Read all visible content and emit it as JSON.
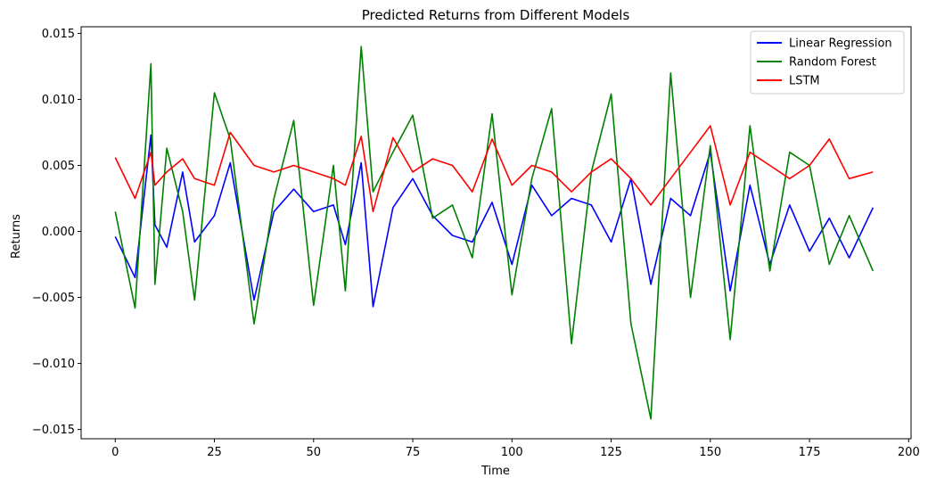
{
  "chart_data": {
    "type": "line",
    "title": "Predicted Returns from Different Models",
    "xlabel": "Time",
    "ylabel": "Returns",
    "xlim": [
      -8.6,
      200.6
    ],
    "ylim": [
      -0.0157,
      0.0155
    ],
    "xticks": [
      0,
      25,
      50,
      75,
      100,
      125,
      150,
      175,
      200
    ],
    "yticks": [
      -0.015,
      -0.01,
      -0.005,
      0.0,
      0.005,
      0.01,
      0.015
    ],
    "ytick_labels": [
      "−0.015",
      "−0.010",
      "−0.005",
      "0.000",
      "0.005",
      "0.010",
      "0.015"
    ],
    "grid": false,
    "legend_position": "top-right",
    "x": [
      0,
      5,
      9,
      10,
      13,
      17,
      20,
      25,
      29,
      35,
      40,
      45,
      50,
      55,
      58,
      62,
      65,
      70,
      75,
      80,
      85,
      90,
      95,
      100,
      105,
      110,
      115,
      120,
      125,
      130,
      135,
      140,
      145,
      150,
      155,
      160,
      165,
      170,
      175,
      180,
      185,
      191
    ],
    "series": [
      {
        "name": "Linear Regression",
        "color": "#0000ff",
        "values": [
          -0.0004,
          -0.0035,
          0.0073,
          0.0005,
          -0.0012,
          0.0045,
          -0.0008,
          0.0012,
          0.0052,
          -0.0052,
          0.0015,
          0.0032,
          0.0015,
          0.002,
          -0.001,
          0.0052,
          -0.0057,
          0.0018,
          0.004,
          0.0012,
          -0.0003,
          -0.0008,
          0.0022,
          -0.0025,
          0.0035,
          0.0012,
          0.0025,
          0.002,
          -0.0008,
          0.004,
          -0.004,
          0.0025,
          0.0012,
          0.006,
          -0.0045,
          0.0035,
          -0.0025,
          0.002,
          -0.0015,
          0.001,
          -0.002,
          0.0018
        ]
      },
      {
        "name": "Random Forest",
        "color": "#008000",
        "values": [
          0.0015,
          -0.0058,
          0.0127,
          -0.004,
          0.0063,
          0.0015,
          -0.0052,
          0.0105,
          0.007,
          -0.007,
          0.0025,
          0.0084,
          -0.0056,
          0.005,
          -0.0045,
          0.014,
          0.003,
          0.006,
          0.0088,
          0.001,
          0.002,
          -0.002,
          0.0089,
          -0.0048,
          0.004,
          0.0093,
          -0.0085,
          0.0045,
          0.0104,
          -0.007,
          -0.0142,
          0.012,
          -0.005,
          0.0065,
          -0.0082,
          0.008,
          -0.003,
          0.006,
          0.005,
          -0.0025,
          0.0012,
          -0.003
        ]
      },
      {
        "name": "LSTM",
        "color": "#ff0000",
        "values": [
          0.0056,
          0.0025,
          0.006,
          0.0035,
          0.0045,
          0.0055,
          0.004,
          0.0035,
          0.0075,
          0.005,
          0.0045,
          0.005,
          0.0045,
          0.004,
          0.0035,
          0.0072,
          0.0015,
          0.0071,
          0.0045,
          0.0055,
          0.005,
          0.003,
          0.007,
          0.0035,
          0.005,
          0.0045,
          0.003,
          0.0045,
          0.0055,
          0.004,
          0.002,
          0.004,
          0.006,
          0.008,
          0.002,
          0.006,
          0.005,
          0.004,
          0.005,
          0.007,
          0.004,
          0.0045
        ]
      }
    ]
  }
}
